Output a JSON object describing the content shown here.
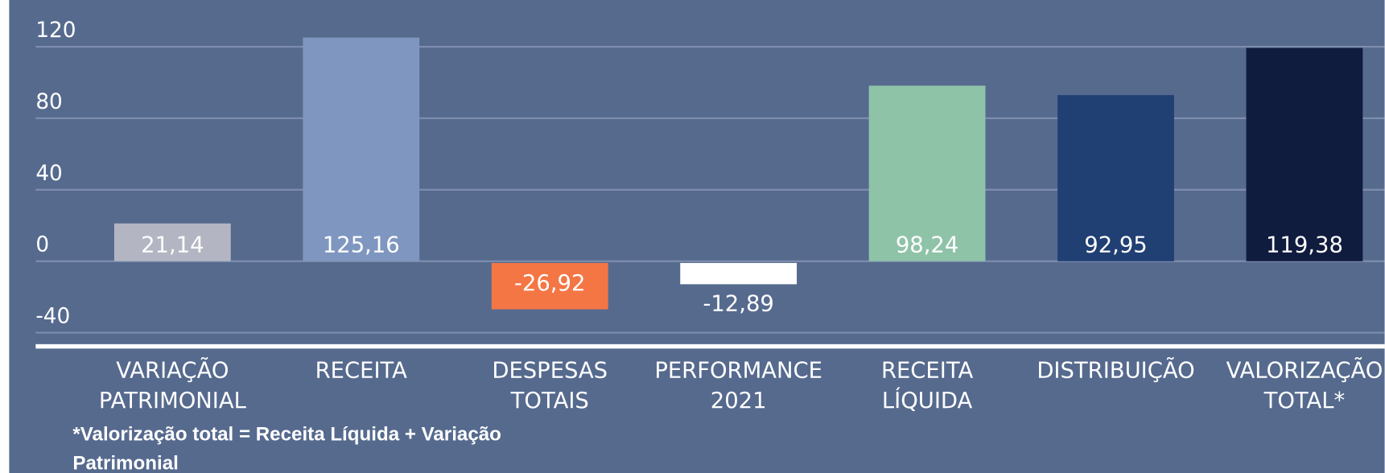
{
  "chart_data": {
    "type": "bar",
    "categories": [
      [
        "VARIAÇÃO",
        "PATRIMONIAL"
      ],
      [
        "RECEITA"
      ],
      [
        "DESPESAS",
        "TOTAIS"
      ],
      [
        "PERFORMANCE",
        "2021"
      ],
      [
        "RECEITA",
        "LÍQUIDA"
      ],
      [
        "DISTRIBUIÇÃO"
      ],
      [
        "VALORIZAÇÃO",
        "TOTAL*"
      ]
    ],
    "values": [
      21.14,
      125.16,
      -26.92,
      -12.89,
      98.24,
      92.95,
      119.38
    ],
    "value_labels": [
      "21,14",
      "125,16",
      "-26,92",
      "-12,89",
      "98,24",
      "92,95",
      "119,38"
    ],
    "colors": [
      "#b3b5c2",
      "#7f97c0",
      "#f47645",
      "#ffffff",
      "#8fc3a8",
      "#203f73",
      "#101c3e"
    ],
    "ylim": [
      -40,
      120
    ],
    "yticks": [
      -40,
      0,
      40,
      80,
      120
    ],
    "grid": true,
    "note": "*Valorização total = Receita Líquida + Variação Patrimonial"
  }
}
